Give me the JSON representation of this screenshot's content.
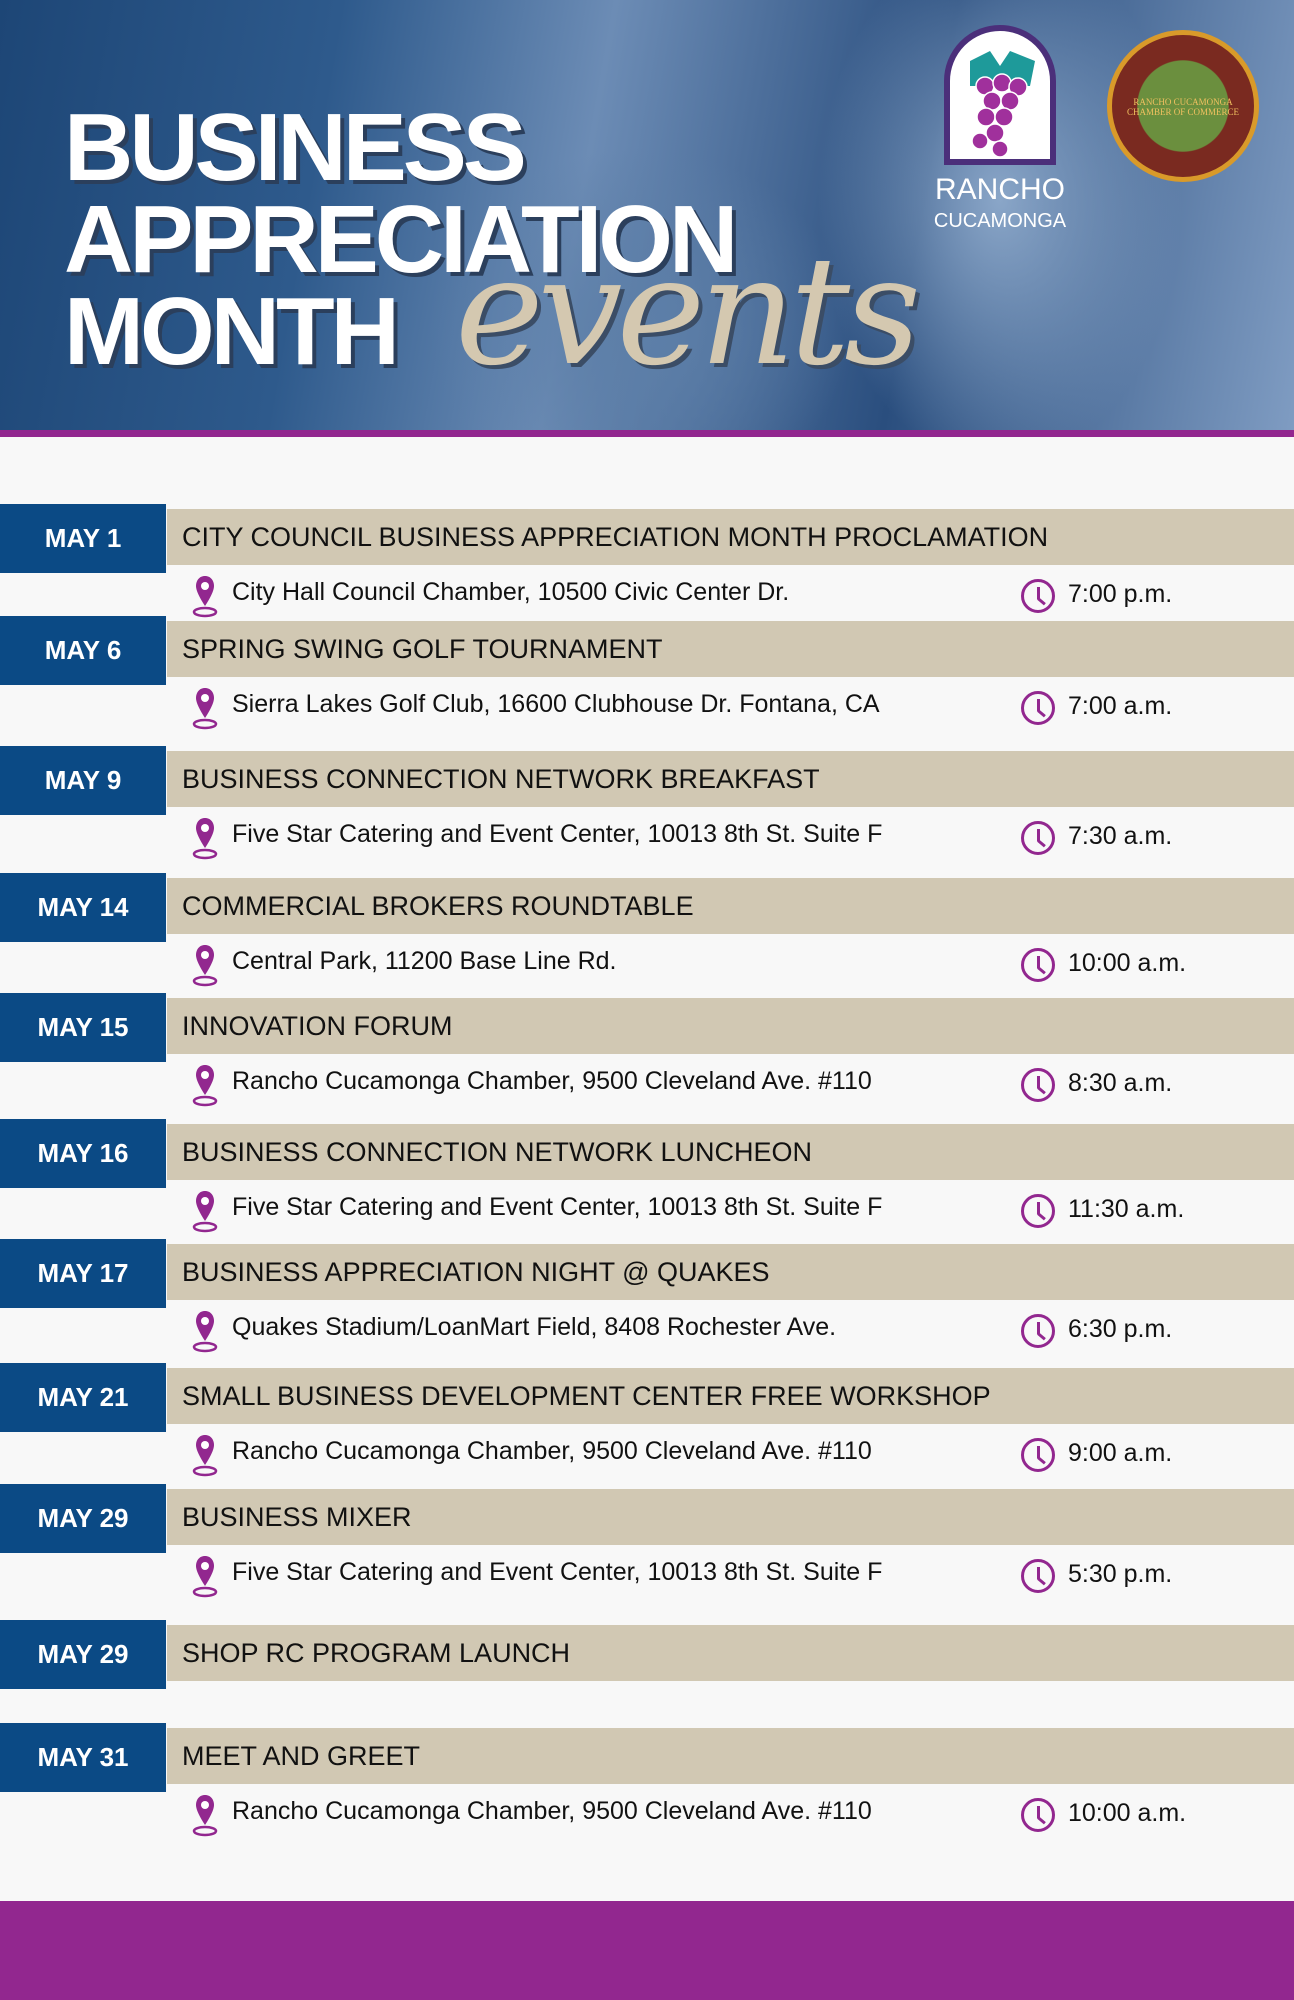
{
  "header": {
    "title_lines": [
      "BUSINESS",
      "APPRECIATION",
      "MONTH"
    ],
    "script_word": "events",
    "logo": {
      "name": "RANCHO",
      "sub": "CUCAMONGA"
    },
    "seal": {
      "text": "RANCHO CUCAMONGA CHAMBER OF COMMERCE"
    }
  },
  "colors": {
    "date_box": "#0b4a85",
    "title_band": "#d1c8b3",
    "accent": "#92278f",
    "header": "#2e5a8c"
  },
  "events": [
    {
      "date": "MAY 1",
      "title": "CITY COUNCIL BUSINESS APPRECIATION MONTH PROCLAMATION",
      "location": "City Hall Council Chamber, 10500 Civic Center Dr.",
      "time": "7:00 p.m."
    },
    {
      "date": "MAY 6",
      "title": "SPRING SWING GOLF TOURNAMENT",
      "location": "Sierra Lakes Golf Club, 16600 Clubhouse Dr. Fontana, CA",
      "time": "7:00 a.m."
    },
    {
      "date": "MAY 9",
      "title": "BUSINESS CONNECTION NETWORK BREAKFAST",
      "location": "Five Star Catering and Event Center, 10013 8th St. Suite F",
      "time": "7:30 a.m."
    },
    {
      "date": "MAY 14",
      "title": "COMMERCIAL BROKERS ROUNDTABLE",
      "location": "Central Park, 11200 Base Line Rd.",
      "time": "10:00 a.m."
    },
    {
      "date": "MAY 15",
      "title": "INNOVATION FORUM",
      "location": "Rancho Cucamonga Chamber, 9500 Cleveland Ave. #110",
      "time": "8:30 a.m."
    },
    {
      "date": "MAY 16",
      "title": "BUSINESS CONNECTION NETWORK LUNCHEON",
      "location": "Five Star Catering and Event Center, 10013 8th St. Suite F",
      "time": "11:30 a.m."
    },
    {
      "date": "MAY 17",
      "title": "BUSINESS APPRECIATION NIGHT @ QUAKES",
      "location": "Quakes Stadium/LoanMart Field, 8408 Rochester Ave.",
      "time": "6:30 p.m."
    },
    {
      "date": "MAY 21",
      "title": "SMALL BUSINESS DEVELOPMENT CENTER FREE WORKSHOP",
      "location": "Rancho Cucamonga Chamber, 9500 Cleveland Ave. #110",
      "time": "9:00 a.m."
    },
    {
      "date": "MAY 29",
      "title": "BUSINESS MIXER",
      "location": "Five Star Catering and Event Center, 10013 8th St. Suite F",
      "time": "5:30 p.m."
    },
    {
      "date": "MAY 29",
      "title": "SHOP RC PROGRAM LAUNCH"
    },
    {
      "date": "MAY 31",
      "title": "MEET AND GREET",
      "location": "Rancho Cucamonga Chamber, 9500 Cleveland Ave. #110",
      "time": "10:00 a.m."
    }
  ]
}
